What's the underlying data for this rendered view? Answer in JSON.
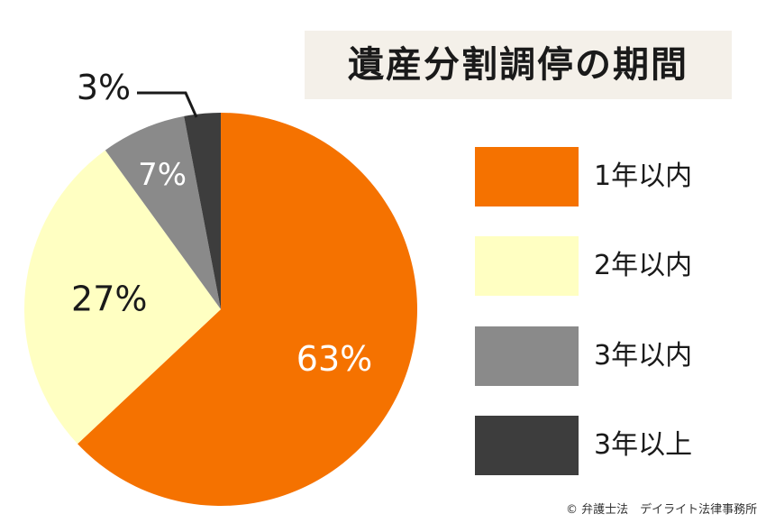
{
  "chart_data": {
    "type": "pie",
    "title": "遺産分割調停の期間",
    "slices": [
      {
        "label": "1年以内",
        "value": 63,
        "value_label": "63%",
        "color": "#f57200",
        "label_color": "#ffffff"
      },
      {
        "label": "2年以内",
        "value": 27,
        "value_label": "27%",
        "color": "#ffffc2",
        "label_color": "#1a1a1a"
      },
      {
        "label": "3年以内",
        "value": 7,
        "value_label": "7%",
        "color": "#8a8a8a",
        "label_color": "#ffffff"
      },
      {
        "label": "3年以上",
        "value": 3,
        "value_label": "3%",
        "color": "#3d3d3d",
        "label_color": "#1a1a1a"
      }
    ],
    "legend_placement": "right"
  },
  "footer": {
    "credit": "© 弁護士法　デイライト法律事務所"
  }
}
